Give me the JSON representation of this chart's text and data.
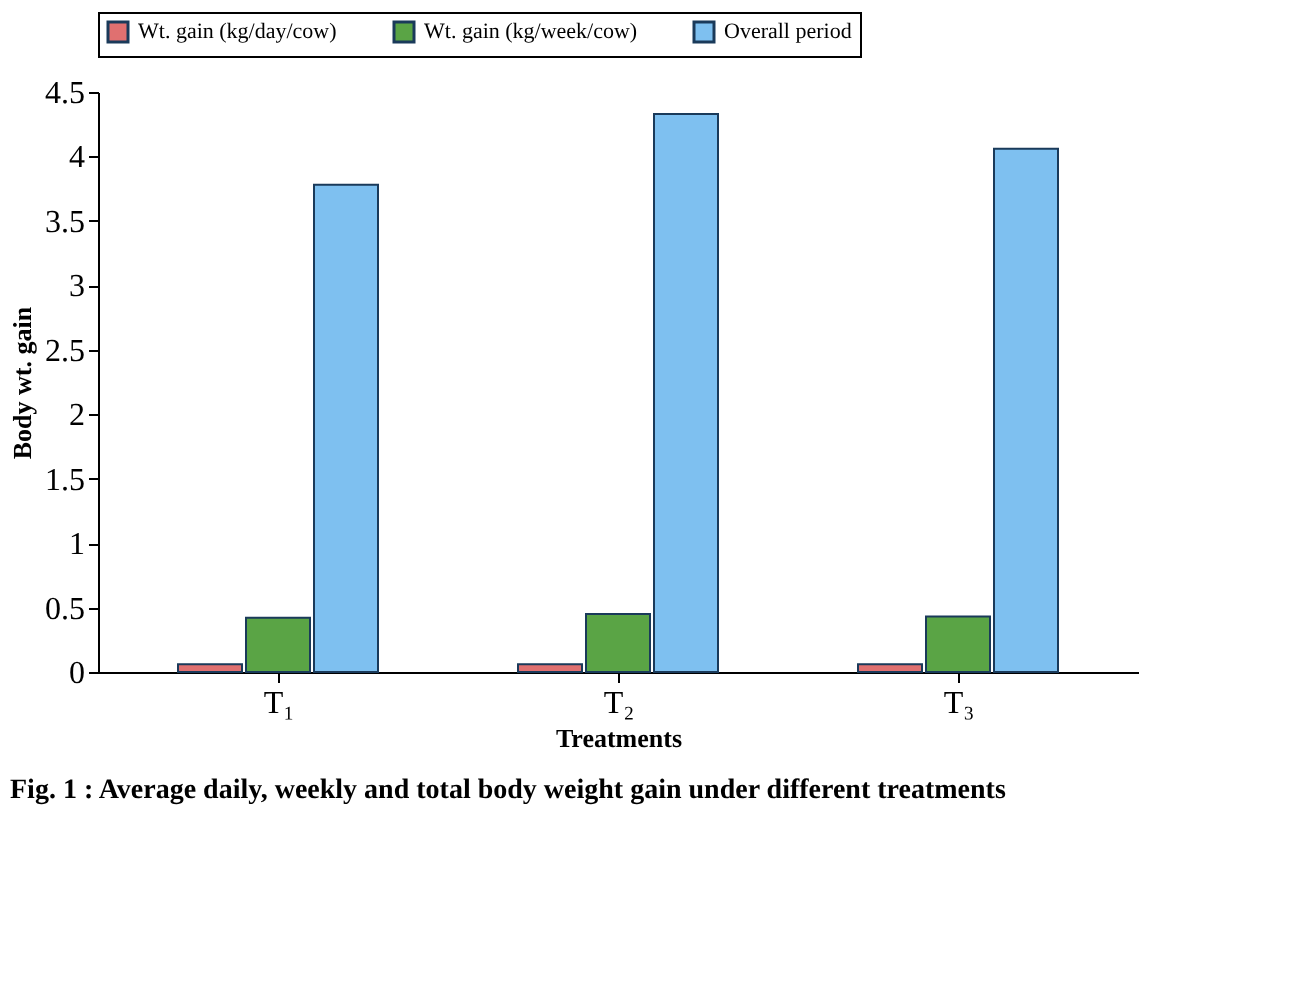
{
  "chart_data": {
    "type": "bar",
    "xlabel": "Treatments",
    "ylabel": "Body wt. gain",
    "categories": [
      "T₁",
      "T₂",
      "T₃"
    ],
    "series": [
      {
        "name": "Wt. gain (kg/day/cow)",
        "color": "#e07070",
        "values": [
          0.06,
          0.06,
          0.06
        ]
      },
      {
        "name": "Wt. gain (kg/week/cow)",
        "color": "#5aa445",
        "values": [
          0.42,
          0.45,
          0.43
        ]
      },
      {
        "name": "Overall period",
        "color": "#7ec0f0",
        "values": [
          3.78,
          4.33,
          4.06
        ]
      }
    ],
    "ylim": [
      0,
      4.5
    ],
    "yticks": [
      0,
      0.5,
      1,
      1.5,
      2,
      2.5,
      3,
      3.5,
      4,
      4.5
    ],
    "grid": false,
    "legend": "top",
    "annotations": [
      "Fig. 1 :  Average daily, weekly and total body weight gain under different treatments"
    ]
  }
}
